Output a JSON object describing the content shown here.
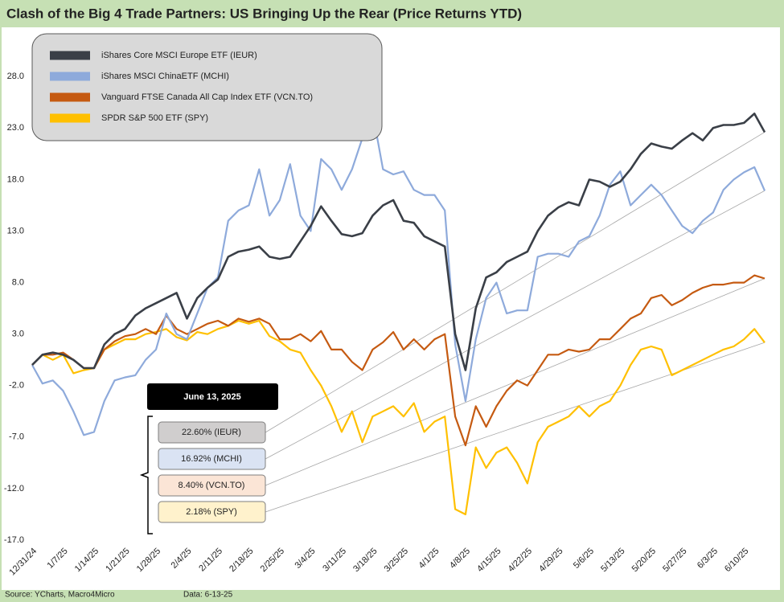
{
  "chart_data": {
    "type": "line",
    "title": "Clash of the Big 4 Trade Partners: US Bringing Up the Rear (Price Returns YTD)",
    "categories": [
      "12/31/24",
      null,
      null,
      "1/7/25",
      null,
      null,
      "1/14/25",
      null,
      null,
      "1/21/25",
      null,
      null,
      "1/28/25",
      null,
      null,
      "2/4/25",
      null,
      null,
      "2/11/25",
      null,
      null,
      "2/18/25",
      null,
      null,
      "2/25/25",
      null,
      null,
      "3/4/25",
      null,
      null,
      "3/11/25",
      null,
      null,
      "3/18/25",
      null,
      null,
      "3/25/25",
      null,
      null,
      "4/1/25",
      null,
      null,
      "4/8/25",
      null,
      null,
      "4/15/25",
      null,
      null,
      "4/22/25",
      null,
      null,
      "4/29/25",
      null,
      null,
      "5/6/25",
      null,
      null,
      "5/13/25",
      null,
      null,
      "5/20/25",
      null,
      null,
      "5/27/25",
      null,
      null,
      "6/3/25",
      null,
      null,
      "6/10/25",
      null,
      null
    ],
    "series": [
      {
        "name": "iShares Core MSCI Europe ETF (IEUR)",
        "color": "#3a3f47",
        "values": [
          0,
          1,
          1.2,
          1,
          0.5,
          -0.3,
          -0.3,
          2,
          3,
          3.5,
          4.8,
          5.5,
          6,
          6.5,
          7,
          4.5,
          6.5,
          7.5,
          8.3,
          10.5,
          11,
          11.2,
          11.5,
          10.5,
          10.3,
          10.5,
          12,
          13.5,
          15.4,
          14,
          12.7,
          12.5,
          12.8,
          14.5,
          15.5,
          16,
          14,
          13.8,
          12.5,
          12,
          11.5,
          3,
          -0.5,
          5.5,
          8.5,
          9,
          10,
          10.5,
          11,
          13,
          14.5,
          15.3,
          15.8,
          15.5,
          18,
          17.8,
          17.3,
          17.8,
          19,
          20.5,
          21.5,
          21.2,
          21,
          21.8,
          22.5,
          21.8,
          23,
          23.3,
          23.3,
          23.5,
          24.4,
          22.6
        ]
      },
      {
        "name": "iShares MSCI ChinaETF (MCHI)",
        "color": "#8eaadb",
        "values": [
          0,
          -1.8,
          -1.5,
          -2.5,
          -4.5,
          -6.8,
          -6.5,
          -3.5,
          -1.5,
          -1.2,
          -1,
          0.5,
          1.5,
          5,
          3,
          2.5,
          5,
          7.5,
          8.5,
          14,
          15,
          15.5,
          19,
          14.5,
          16,
          19.5,
          14.5,
          13,
          20,
          19,
          17,
          19,
          22,
          24.5,
          19,
          18.5,
          18.8,
          17,
          16.5,
          16.5,
          15,
          2,
          -3.5,
          2.5,
          6.5,
          8,
          5,
          5.3,
          5.3,
          10.5,
          10.8,
          10.8,
          10.5,
          12,
          12.5,
          14.5,
          17.5,
          18.8,
          15.5,
          16.5,
          17.5,
          16.5,
          15,
          13.5,
          12.8,
          14,
          14.8,
          17,
          18,
          18.7,
          19.2,
          16.92
        ]
      },
      {
        "name": "Vanguard FTSE Canada All Cap Index ETF (VCN.TO)",
        "color": "#c55a11",
        "values": [
          0,
          1,
          1,
          1.2,
          0.5,
          -0.3,
          -0.3,
          1.5,
          2.3,
          2.8,
          3,
          3.5,
          3,
          4.8,
          3.5,
          3,
          3.5,
          4,
          4.3,
          3.8,
          4.5,
          4.2,
          4.5,
          4,
          2.5,
          2.5,
          3,
          2.3,
          3.3,
          1.5,
          1.5,
          0.3,
          -0.5,
          1.5,
          2.2,
          3.2,
          1.5,
          2.5,
          1.5,
          2.5,
          3,
          -5,
          -7.8,
          -4,
          -6,
          -4,
          -2.5,
          -1.5,
          -2,
          -0.5,
          1,
          1,
          1.5,
          1.3,
          1.5,
          2.5,
          2.5,
          3.5,
          4.5,
          5,
          6.5,
          6.8,
          5.8,
          6.3,
          7,
          7.5,
          7.8,
          7.8,
          8,
          8,
          8.7,
          8.4
        ]
      },
      {
        "name": "SPDR S&P 500 ETF (SPY)",
        "color": "#ffc000",
        "values": [
          0,
          1,
          0.5,
          1,
          -0.8,
          -0.5,
          -0.3,
          1.5,
          2,
          2.5,
          2.5,
          3,
          3.2,
          3.5,
          2.7,
          2.4,
          3.2,
          3,
          3.5,
          3.8,
          4.3,
          4,
          4.3,
          2.8,
          2.3,
          1.5,
          1.2,
          -0.5,
          -2,
          -4,
          -6.5,
          -4.5,
          -7.5,
          -5,
          -4.5,
          -4,
          -5,
          -3.7,
          -6.5,
          -5.5,
          -5,
          -14,
          -14.5,
          -8,
          -10,
          -8.5,
          -8,
          -9.5,
          -11.5,
          -7.5,
          -6,
          -5.5,
          -5,
          -4,
          -5,
          -4,
          -3.5,
          -2,
          0,
          1.5,
          1.8,
          1.5,
          -1,
          -0.5,
          0,
          0.5,
          1,
          1.5,
          1.8,
          2.5,
          3.5,
          2.18
        ]
      }
    ],
    "ylim": [
      -17,
      32.7
    ],
    "yticks": [
      {
        "value": -17,
        "label": "-17.0"
      },
      {
        "value": -12,
        "label": "-12.0"
      },
      {
        "value": -7,
        "label": "-7.0"
      },
      {
        "value": -2,
        "label": "-2.0"
      },
      {
        "value": 3,
        "label": "3.0"
      },
      {
        "value": 8,
        "label": "8.0"
      },
      {
        "value": 13,
        "label": "13.0"
      },
      {
        "value": 18,
        "label": "18.0"
      },
      {
        "value": 23,
        "label": "23.0"
      },
      {
        "value": 28,
        "label": "28.0"
      }
    ],
    "grid": false,
    "legend": "upper left",
    "annotation": {
      "date": "June 13, 2025",
      "labels": [
        "22.60% (IEUR)",
        "16.92% (MCHI)",
        "8.40% (VCN.TO)",
        "2.18% (SPY)"
      ]
    },
    "source": "Source: YCharts, Macro4Micro",
    "data_date": "Data: 6-13-25"
  }
}
